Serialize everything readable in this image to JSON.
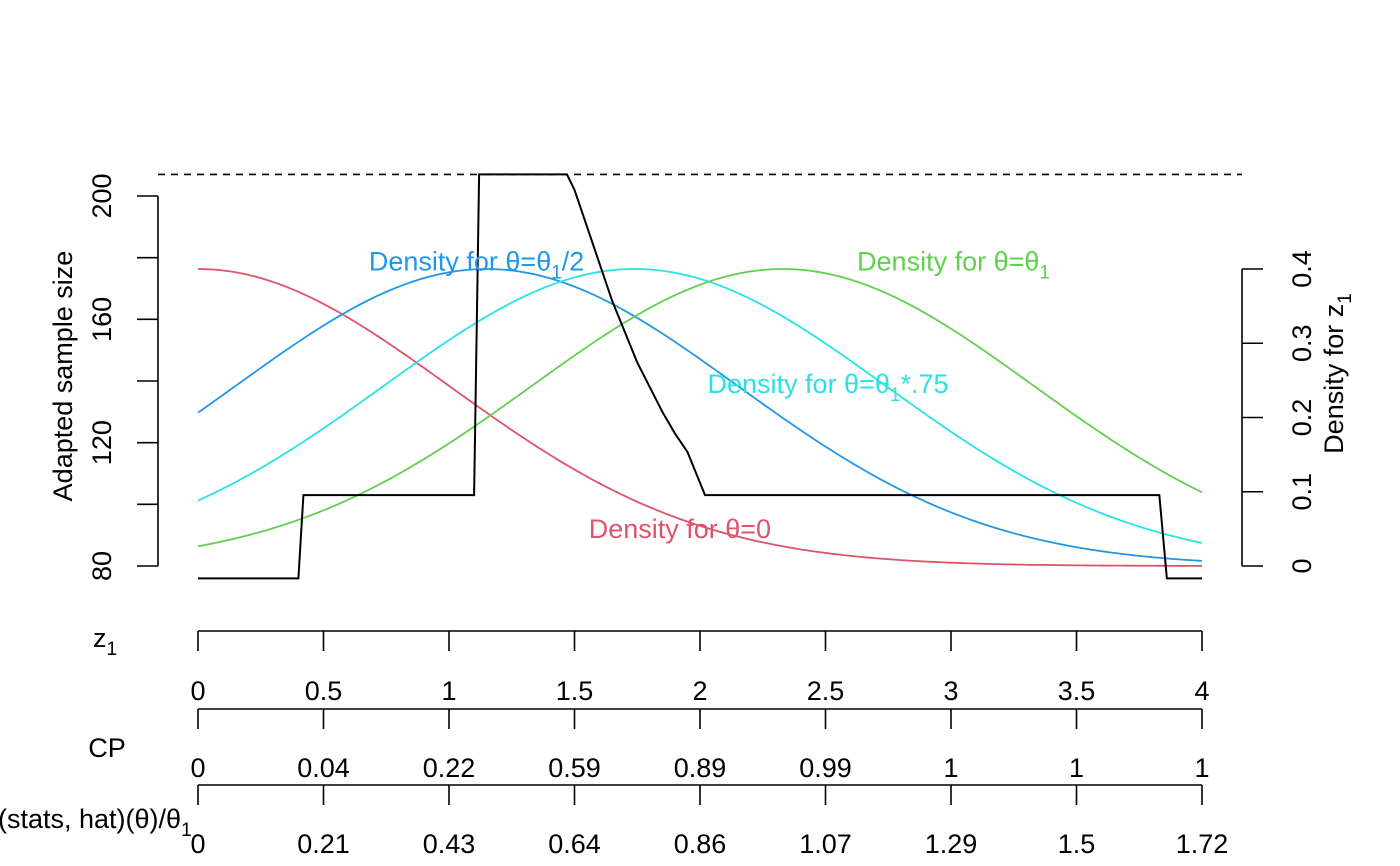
{
  "chart_data": {
    "type": "line",
    "title": "",
    "xlabel": "",
    "ylabel": "Adapted sample size",
    "ylabel_right": "Density for z",
    "ylabel_right_sub": "1",
    "xlim": [
      0,
      4
    ],
    "ylim_left": [
      80,
      200
    ],
    "yticks_left": [
      80,
      120,
      160,
      200
    ],
    "ylim_right": [
      0,
      0.4
    ],
    "yticks_right": [
      0,
      0.1,
      0.2,
      0.3,
      0.4
    ],
    "max_sample_size_line": 207,
    "sample_size_curve": {
      "name": "Adapted sample size",
      "color": "#000000",
      "z": [
        0,
        0.4,
        0.42,
        1.1,
        1.12,
        1.47,
        1.5,
        1.55,
        1.6,
        1.65,
        1.7,
        1.75,
        1.8,
        1.85,
        1.9,
        1.95,
        2.02,
        3.83,
        3.86,
        4
      ],
      "n": [
        76,
        76,
        103,
        103,
        207,
        207,
        202,
        190,
        178,
        166,
        156,
        146,
        138,
        130,
        123,
        117,
        103,
        103,
        76,
        76
      ]
    },
    "densities": [
      {
        "label_prefix": "Density for θ=",
        "label_main": "0",
        "label_sub": "",
        "label_suffix": "",
        "mean": 0,
        "sd": 1,
        "color": "#DF536B",
        "label_z": 1.92,
        "label_y": 0.05
      },
      {
        "label_prefix": "Density for θ=",
        "label_main": "θ",
        "label_sub": "1",
        "label_suffix": "/2",
        "mean": 1.15,
        "sd": 1,
        "color": "#2297E6",
        "label_z": 1.11,
        "label_y": 0.41
      },
      {
        "label_prefix": "Density for θ=",
        "label_main": "θ",
        "label_sub": "1",
        "label_suffix": "*.75",
        "mean": 1.74,
        "sd": 1,
        "color": "#28E2E5",
        "label_z": 2.51,
        "label_y": 0.245
      },
      {
        "label_prefix": "Density for θ=",
        "label_main": "θ",
        "label_sub": "1",
        "label_suffix": "",
        "mean": 2.33,
        "sd": 1,
        "color": "#61D04F",
        "label_z": 3.01,
        "label_y": 0.41
      }
    ],
    "density_peak": 0.4,
    "axis_z1": {
      "label": "z",
      "label_sub": "1",
      "ticks": [
        0,
        0.5,
        1,
        1.5,
        2,
        2.5,
        3,
        3.5,
        4
      ],
      "tick_labels": [
        "0",
        "0.5",
        "1",
        "1.5",
        "2",
        "2.5",
        "3",
        "3.5",
        "4"
      ]
    },
    "axis_cp": {
      "label": "CP",
      "tick_labels": [
        "0",
        "0.04",
        "0.22",
        "0.59",
        "0.89",
        "0.99",
        "1",
        "1",
        "1"
      ]
    },
    "axis_theta": {
      "label": "(stats, hat)(θ)/θ",
      "label_sub": "1",
      "tick_labels": [
        "0",
        "0.21",
        "0.43",
        "0.64",
        "0.86",
        "1.07",
        "1.29",
        "1.5",
        "1.72"
      ]
    }
  }
}
